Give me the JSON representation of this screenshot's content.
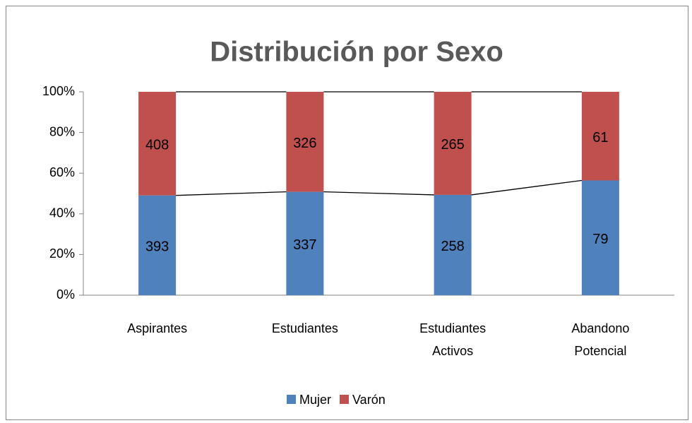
{
  "chart_data": {
    "type": "stacked_percent_bar",
    "title": "Distribución por Sexo",
    "categories": [
      "Aspirantes",
      "Estudiantes",
      "Estudiantes\nActivos",
      "Abandono\nPotencial"
    ],
    "series": [
      {
        "name": "Mujer",
        "color": "#4f81bd",
        "values": [
          393,
          337,
          258,
          79
        ]
      },
      {
        "name": "Varón",
        "color": "#c0504d",
        "values": [
          408,
          326,
          265,
          61
        ]
      }
    ],
    "ylim": [
      0,
      100
    ],
    "yticks": [
      {
        "value": 0,
        "label": "0%"
      },
      {
        "value": 20,
        "label": "20%"
      },
      {
        "value": 40,
        "label": "40%"
      },
      {
        "value": 60,
        "label": "60%"
      },
      {
        "value": 80,
        "label": "80%"
      },
      {
        "value": 100,
        "label": "100%"
      }
    ],
    "grid": false,
    "series_lines": true,
    "legend": "bottom"
  }
}
